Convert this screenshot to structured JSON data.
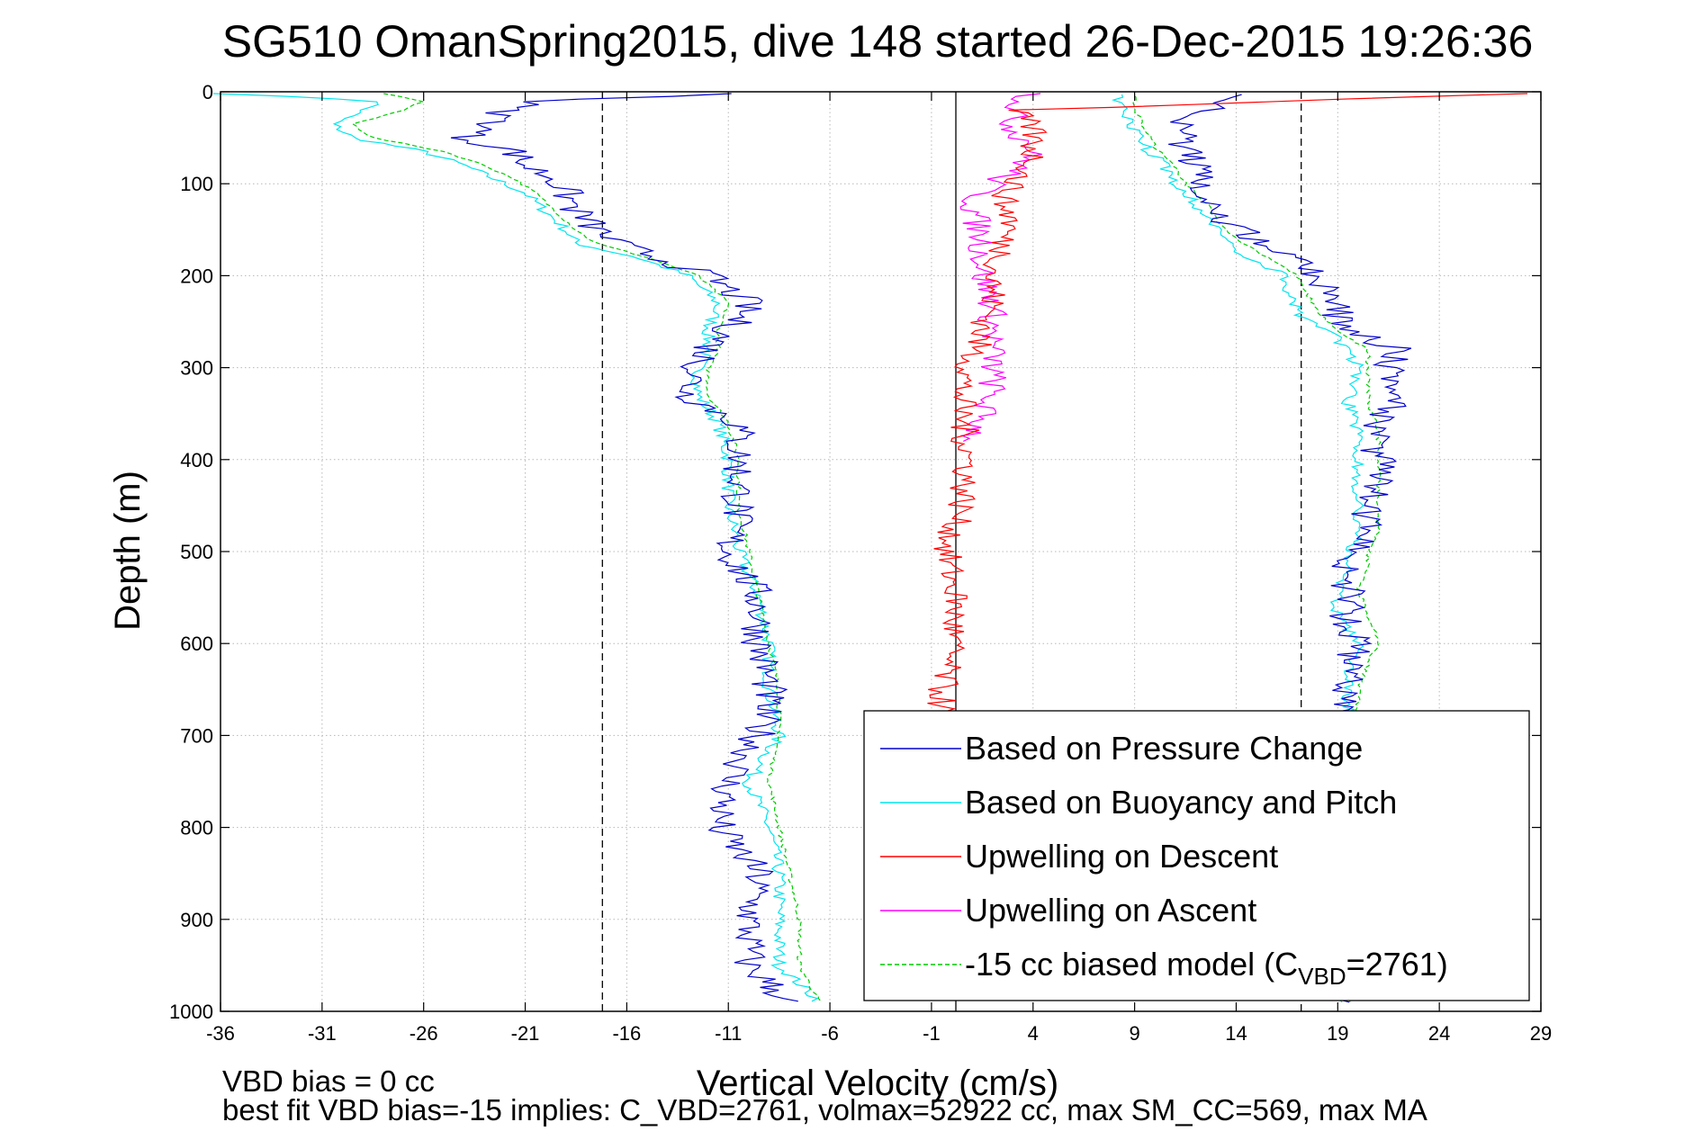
{
  "chart_data": {
    "type": "line",
    "title": "SG510 OmanSpring2015, dive 148 started 26-Dec-2015 19:26:36",
    "xlabel": "Vertical Velocity (cm/s)",
    "ylabel": "Depth (m)",
    "xlim": [
      -36,
      29
    ],
    "ylim": [
      0,
      1000
    ],
    "y_reversed": true,
    "xticks": [
      "-36",
      "-31",
      "-26",
      "-21",
      "-16",
      "-11",
      "-6",
      "-1",
      "4",
      "9",
      "14",
      "19",
      "24",
      "29"
    ],
    "yticks": [
      "0",
      "100",
      "200",
      "300",
      "400",
      "500",
      "600",
      "700",
      "800",
      "900",
      "1000"
    ],
    "grid": true,
    "legend_location": "bottom-right",
    "reference_lines": [
      {
        "x": -17.2,
        "style": "dashed",
        "color": "#000000"
      },
      {
        "x": 0.2,
        "style": "solid",
        "color": "#000000"
      },
      {
        "x": 17.2,
        "style": "dashed",
        "color": "#000000"
      }
    ],
    "series": [
      {
        "name": "Based on Pressure Change",
        "color": "#0000cc",
        "style": "solid",
        "descent": {
          "depth": [
            2,
            10,
            20,
            35,
            50,
            65,
            80,
            95,
            110,
            130,
            150,
            165,
            180,
            200,
            230,
            260,
            280,
            300,
            330,
            360,
            400,
            450,
            500,
            550,
            600,
            650,
            700,
            750,
            800,
            850,
            900,
            950,
            990
          ],
          "velocity": [
            -10,
            -20.5,
            -22,
            -22.5,
            -24,
            -21.5,
            -21,
            -19.5,
            -19,
            -18.5,
            -17.5,
            -16.5,
            -14.5,
            -12,
            -10,
            -11,
            -12,
            -12.5,
            -13,
            -10.5,
            -10.5,
            -10.5,
            -11,
            -9.5,
            -9.5,
            -9,
            -9.5,
            -11,
            -11.5,
            -9.5,
            -10,
            -10,
            -8
          ]
        },
        "ascent": {
          "depth": [
            990,
            950,
            900,
            850,
            800,
            750,
            700,
            680,
            650,
            620,
            600,
            570,
            540,
            520,
            500,
            480,
            450,
            420,
            400,
            370,
            340,
            300,
            280,
            260,
            240,
            220,
            200,
            180,
            160,
            140,
            120,
            100,
            80,
            60,
            40,
            20,
            2
          ],
          "velocity": [
            19,
            19,
            19,
            19,
            19,
            19,
            19,
            19.5,
            19.5,
            19.5,
            20,
            19.5,
            19.5,
            19.5,
            20,
            20.5,
            20.5,
            21,
            21,
            21,
            21.5,
            21.5,
            22,
            19.5,
            19,
            19,
            18,
            16.5,
            15,
            13.5,
            12.5,
            12,
            12,
            11.5,
            11,
            12.5,
            15
          ]
        }
      },
      {
        "name": "Based on Buoyancy and Pitch",
        "color": "#00e5ee",
        "style": "solid",
        "descent": {
          "depth": [
            2,
            10,
            20,
            35,
            50,
            65,
            80,
            95,
            110,
            130,
            150,
            165,
            180,
            200,
            230,
            260,
            280,
            300,
            330,
            360,
            400,
            450,
            500,
            550,
            600,
            650,
            700,
            750,
            800,
            850,
            900,
            950,
            990
          ],
          "velocity": [
            -36,
            -28,
            -29,
            -30.5,
            -29.5,
            -26,
            -24,
            -22.5,
            -21,
            -20,
            -19,
            -18.5,
            -15.5,
            -13,
            -11.5,
            -12,
            -12,
            -12.5,
            -12.5,
            -11.5,
            -11,
            -11,
            -10.5,
            -9.5,
            -9,
            -9,
            -8.5,
            -10,
            -9,
            -8.5,
            -8.5,
            -8.5,
            -6.5
          ]
        },
        "ascent": {
          "depth": [
            990,
            950,
            900,
            850,
            800,
            750,
            700,
            680,
            650,
            620,
            600,
            570,
            540,
            520,
            500,
            480,
            450,
            420,
            400,
            370,
            340,
            300,
            280,
            260,
            240,
            220,
            200,
            180,
            160,
            140,
            120,
            100,
            80,
            60,
            40,
            20,
            2
          ],
          "velocity": [
            19,
            19,
            19,
            19,
            19,
            19,
            19,
            19.5,
            19.5,
            19.5,
            20,
            19,
            19,
            19.5,
            19.5,
            20,
            20,
            20,
            20,
            20,
            19.5,
            20,
            19.5,
            18.5,
            17,
            16.5,
            16.5,
            14.5,
            13.5,
            12.5,
            12,
            11,
            10.5,
            9.5,
            9,
            8.5,
            8
          ]
        }
      },
      {
        "name": "Upwelling on Descent",
        "color": "#ff0000",
        "style": "solid",
        "depth": [
          2,
          20,
          40,
          60,
          80,
          100,
          120,
          140,
          160,
          180,
          200,
          230,
          260,
          290,
          320,
          350,
          400,
          450,
          500,
          550,
          600,
          650,
          700
        ],
        "velocity": [
          28,
          3,
          4,
          4,
          4,
          3,
          2.5,
          3,
          2.5,
          2.5,
          2,
          2,
          1.5,
          1,
          0.5,
          0.5,
          0.8,
          0.5,
          -0.3,
          0.2,
          0,
          -0.5,
          -0.5
        ]
      },
      {
        "name": "Upwelling on Ascent",
        "color": "#ff00ff",
        "style": "solid",
        "depth": [
          2,
          20,
          40,
          60,
          80,
          100,
          120,
          140,
          160,
          180,
          200,
          230,
          260,
          290,
          320,
          350,
          380
        ],
        "velocity": [
          4,
          3,
          3,
          4,
          3.5,
          2,
          1,
          1.2,
          1.5,
          1.5,
          1.5,
          2,
          2,
          2,
          2,
          1.5,
          1
        ]
      },
      {
        "name": "-15 cc biased model (C",
        "name_subscript": "VBD",
        "name_suffix": "=2761)",
        "color": "#00cc00",
        "style": "dashed",
        "descent": {
          "depth": [
            2,
            10,
            20,
            35,
            50,
            65,
            80,
            95,
            110,
            130,
            150,
            165,
            180,
            200,
            230,
            260,
            280,
            300,
            330,
            360,
            400,
            450,
            500,
            550,
            600,
            650,
            700,
            750,
            800,
            850,
            900,
            950,
            990
          ],
          "velocity": [
            -28,
            -26,
            -27,
            -29.5,
            -28.5,
            -25,
            -23,
            -21.5,
            -20.5,
            -19.5,
            -18.5,
            -17.5,
            -15,
            -12.5,
            -11,
            -11.5,
            -11.5,
            -12,
            -12,
            -11,
            -10.5,
            -10.5,
            -10,
            -9.5,
            -9,
            -8.5,
            -8.5,
            -9,
            -8.5,
            -8,
            -7.5,
            -7.5,
            -6.5
          ]
        },
        "ascent": {
          "depth": [
            990,
            950,
            900,
            850,
            800,
            750,
            700,
            680,
            650,
            620,
            600,
            570,
            540,
            520,
            500,
            480,
            450,
            420,
            400,
            370,
            340,
            300,
            280,
            260,
            240,
            220,
            200,
            180,
            160,
            140,
            120,
            100,
            80,
            60,
            40,
            20,
            2
          ],
          "velocity": [
            19.5,
            19.5,
            19.5,
            19.5,
            19.5,
            19.5,
            19.5,
            20,
            20,
            20.5,
            21,
            20.5,
            20,
            20.5,
            20.5,
            21,
            21,
            21,
            21,
            21,
            20.5,
            20.5,
            20.5,
            19,
            18,
            17.5,
            17,
            15.5,
            14,
            13,
            12.5,
            11.5,
            11,
            10,
            9.5,
            9,
            9
          ]
        }
      }
    ]
  },
  "footnotes": {
    "vbd_bias": "VBD bias = 0 cc",
    "best_fit": "best fit VBD bias=-15 implies: C_VBD=2761, volmax=52922 cc, max SM_CC=569, max MA"
  }
}
